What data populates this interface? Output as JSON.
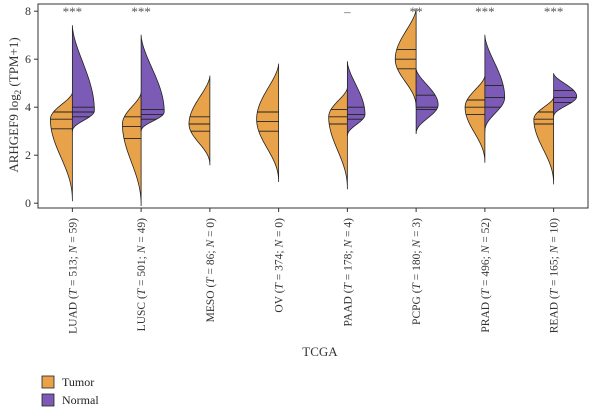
{
  "chart_data": {
    "type": "split-violin",
    "title": "",
    "xlabel": "TCGA",
    "ylabel_main": "ARHGEF9 log",
    "ylabel_sub": "2",
    "ylabel_tail": " (TPM+1)",
    "ylim": [
      -0.2,
      8.3
    ],
    "yticks": [
      0,
      2,
      4,
      6,
      8
    ],
    "grid": false,
    "legend_position": "bottom-left",
    "colors": {
      "tumor": "#E8A24A",
      "normal": "#7B5BB5",
      "outline": "#222222"
    },
    "series": [
      {
        "name": "Tumor",
        "key": "tumor"
      },
      {
        "name": "Normal",
        "key": "normal"
      }
    ],
    "categories": [
      {
        "abbr": "LUAD",
        "t": "513",
        "n": "59",
        "sig": "***",
        "tumor": {
          "min": 0.1,
          "max": 4.6,
          "q1": 3.1,
          "median": 3.5,
          "q3": 3.8,
          "mode": 3.5,
          "width": 1.0
        },
        "normal": {
          "min": 3.0,
          "max": 7.4,
          "q1": 3.6,
          "median": 3.8,
          "q3": 4.0,
          "mode": 3.85,
          "width": 1.0
        }
      },
      {
        "abbr": "LUSC",
        "t": "501",
        "n": "49",
        "sig": "***",
        "tumor": {
          "min": -0.1,
          "max": 4.6,
          "q1": 2.7,
          "median": 3.2,
          "q3": 3.6,
          "mode": 3.3,
          "width": 0.85
        },
        "normal": {
          "min": 3.0,
          "max": 7.0,
          "q1": 3.5,
          "median": 3.7,
          "q3": 3.9,
          "mode": 3.8,
          "width": 1.05
        }
      },
      {
        "abbr": "MESO",
        "t": "86",
        "n": "0",
        "sig": "",
        "tumor": {
          "min": 1.6,
          "max": 5.3,
          "q1": 3.0,
          "median": 3.3,
          "q3": 3.6,
          "mode": 3.3,
          "width": 0.95
        },
        "normal": null
      },
      {
        "abbr": "OV",
        "t": "374",
        "n": "0",
        "sig": "",
        "tumor": {
          "min": 0.9,
          "max": 5.8,
          "q1": 3.0,
          "median": 3.4,
          "q3": 3.8,
          "mode": 3.5,
          "width": 1.0
        },
        "normal": null
      },
      {
        "abbr": "PAAD",
        "t": "178",
        "n": "4",
        "sig": "–",
        "tumor": {
          "min": 0.6,
          "max": 4.8,
          "q1": 3.3,
          "median": 3.6,
          "q3": 3.9,
          "mode": 3.6,
          "width": 0.85
        },
        "normal": {
          "min": 2.8,
          "max": 5.9,
          "q1": 3.5,
          "median": 3.7,
          "q3": 4.0,
          "mode": 3.7,
          "width": 0.8
        }
      },
      {
        "abbr": "PCPG",
        "t": "180",
        "n": "3",
        "sig": "**",
        "tumor": {
          "min": 4.0,
          "max": 8.1,
          "q1": 5.6,
          "median": 6.0,
          "q3": 6.4,
          "mode": 6.0,
          "width": 0.95
        },
        "normal": {
          "min": 2.9,
          "max": 5.6,
          "q1": 3.9,
          "median": 4.0,
          "q3": 4.5,
          "mode": 4.1,
          "width": 1.0
        }
      },
      {
        "abbr": "PRAD",
        "t": "496",
        "n": "52",
        "sig": "***",
        "tumor": {
          "min": 1.7,
          "max": 5.3,
          "q1": 3.7,
          "median": 4.0,
          "q3": 4.3,
          "mode": 4.0,
          "width": 0.9
        },
        "normal": {
          "min": 3.0,
          "max": 7.0,
          "q1": 4.0,
          "median": 4.4,
          "q3": 4.9,
          "mode": 4.4,
          "width": 0.9
        }
      },
      {
        "abbr": "READ",
        "t": "165",
        "n": "10",
        "sig": "***",
        "tumor": {
          "min": 0.8,
          "max": 4.4,
          "q1": 3.3,
          "median": 3.5,
          "q3": 3.8,
          "mode": 3.5,
          "width": 0.9
        },
        "normal": {
          "min": 3.6,
          "max": 5.4,
          "q1": 4.2,
          "median": 4.4,
          "q3": 4.7,
          "mode": 4.45,
          "width": 1.05
        }
      }
    ]
  }
}
